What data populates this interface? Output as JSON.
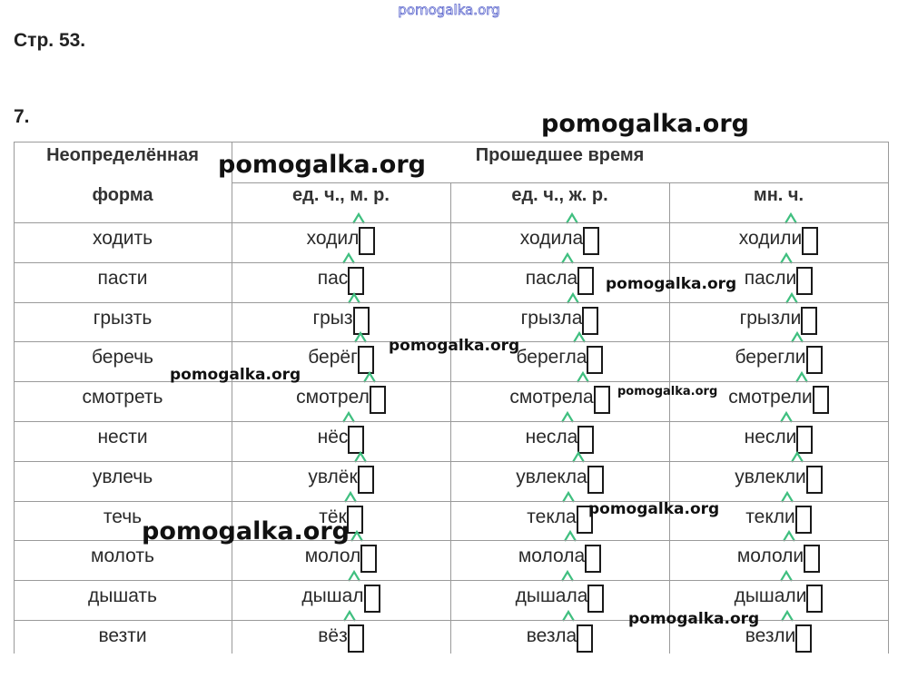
{
  "watermark_top": "pomogalka.org",
  "page_label": "Стр. 53.",
  "task_number": "7.",
  "table": {
    "header_infinitive_line1": "Неопределённая",
    "header_infinitive_line2": "форма",
    "header_past": "Прошедшее время",
    "subheaders": [
      "ед. ч., м. р.",
      "ед. ч., ж. р.",
      "мн. ч."
    ],
    "rows": [
      {
        "inf": "ходить",
        "masc": "ходил",
        "fem": "ходила",
        "pl": "ходили"
      },
      {
        "inf": "пасти",
        "masc": "пас",
        "fem": "пасла",
        "pl": "пасли"
      },
      {
        "inf": "грызть",
        "masc": "грыз",
        "fem": "грызла",
        "pl": "грызли"
      },
      {
        "inf": "беречь",
        "masc": "берёг",
        "fem": "берегла",
        "pl": "берегли"
      },
      {
        "inf": "смотреть",
        "masc": "смотрел",
        "fem": "смотрела",
        "pl": "смотрели"
      },
      {
        "inf": "нести",
        "masc": "нёс",
        "fem": "несла",
        "pl": "несли"
      },
      {
        "inf": "увлечь",
        "masc": "увлёк",
        "fem": "увлекла",
        "pl": "увлекли"
      },
      {
        "inf": "течь",
        "masc": "тёк",
        "fem": "текла",
        "pl": "текли"
      },
      {
        "inf": "молоть",
        "masc": "молол",
        "fem": "молола",
        "pl": "мололи"
      },
      {
        "inf": "дышать",
        "masc": "дышал",
        "fem": "дышала",
        "pl": "дышали"
      },
      {
        "inf": "везти",
        "masc": "вёз",
        "fem": "везла",
        "pl": "везли"
      }
    ]
  },
  "watermarks": [
    "pomogalka.org",
    "pomogalka.org",
    "pomogalka.org",
    "pomogalka.org",
    "pomogalka.org",
    "pomogalka.org",
    "pomogalka.org",
    "pomogalka.org",
    "pomogalka.org"
  ],
  "colors": {
    "stem_mark": "#3fbf7f",
    "grid": "#9a9a9a",
    "text": "#2a2a2a"
  }
}
